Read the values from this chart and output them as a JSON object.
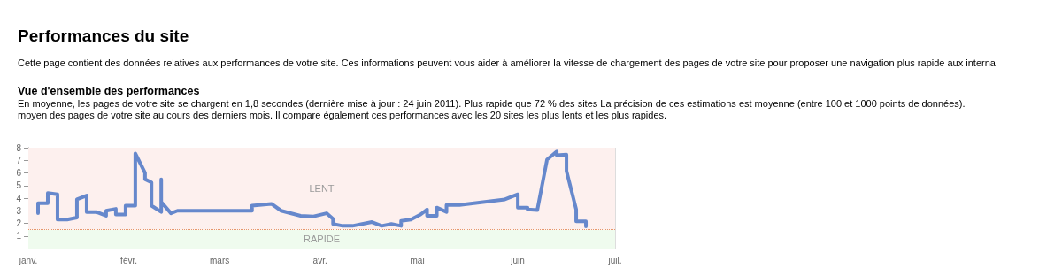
{
  "chart_data": {
    "type": "line",
    "title": "Performances du site",
    "subtitle": "Cette page contient des données relatives aux performances de votre site. Ces informations peuvent vous aider à améliorer la vitesse de chargement des pages de votre site pour proposer une navigation plus rapide aux interna",
    "annotations": [
      "Vue d'ensemble des performances",
      "En moyenne, les pages de votre site se chargent en 1,8 secondes (dernière mise à jour : 24 juin 2011). Plus rapide que 72 % des sites La précision de ces estimations est moyenne (entre 100 et 1000 points de données).",
      "moyen des pages de votre site au cours des derniers mois. Il compare également ces performances avec les 20 sites les plus lents et les plus rapides."
    ],
    "series": [
      {
        "color": "#6688cc",
        "x": [
          "2011-01-04",
          "2011-01-04",
          "2011-01-07",
          "2011-01-07",
          "2011-01-10",
          "2011-01-10",
          "2011-01-13",
          "2011-01-16",
          "2011-01-16",
          "2011-01-19",
          "2011-01-19",
          "2011-01-22",
          "2011-01-25",
          "2011-01-25",
          "2011-01-28",
          "2011-01-28",
          "2011-01-31",
          "2011-01-31",
          "2011-02-03",
          "2011-02-03",
          "2011-02-06",
          "2011-02-06",
          "2011-02-08",
          "2011-02-08",
          "2011-02-11",
          "2011-02-11",
          "2011-02-11",
          "2011-02-14",
          "2011-02-16",
          "2011-03-11",
          "2011-03-11",
          "2011-03-17",
          "2011-03-20",
          "2011-03-26",
          "2011-03-30",
          "2011-04-03",
          "2011-04-05",
          "2011-04-05",
          "2011-04-08",
          "2011-04-11",
          "2011-04-17",
          "2011-04-20",
          "2011-04-23",
          "2011-04-26",
          "2011-04-26",
          "2011-04-29",
          "2011-05-02",
          "2011-05-04",
          "2011-05-04",
          "2011-05-07",
          "2011-05-07",
          "2011-05-10",
          "2011-05-10",
          "2011-05-14",
          "2011-05-28",
          "2011-06-01",
          "2011-06-01",
          "2011-06-04",
          "2011-06-04",
          "2011-06-07",
          "2011-06-10",
          "2011-06-13",
          "2011-06-13",
          "2011-06-16",
          "2011-06-16",
          "2011-06-19",
          "2011-06-19",
          "2011-06-22",
          "2011-06-22"
        ],
        "values": [
          2.8,
          3.6,
          3.6,
          4.4,
          4.3,
          2.3,
          2.3,
          2.45,
          3.9,
          4.2,
          2.9,
          2.9,
          2.6,
          3.0,
          3.15,
          2.7,
          2.7,
          3.4,
          3.4,
          7.55,
          6.0,
          5.5,
          5.25,
          3.4,
          2.9,
          5.5,
          3.7,
          2.8,
          3.0,
          3.0,
          3.4,
          3.55,
          3.0,
          2.6,
          2.55,
          2.8,
          2.35,
          1.95,
          1.8,
          1.8,
          2.1,
          1.8,
          1.95,
          1.8,
          2.2,
          2.3,
          2.7,
          3.1,
          2.6,
          2.6,
          3.25,
          2.9,
          3.45,
          3.45,
          3.9,
          4.3,
          3.25,
          3.25,
          3.1,
          3.05,
          7.05,
          7.7,
          7.4,
          7.45,
          6.15,
          3.1,
          2.15,
          2.15,
          1.75
        ]
      }
    ],
    "xlim": [
      "2011-01-01",
      "2011-07-01"
    ],
    "xticks": [
      {
        "value": "2011-01-01",
        "label": "janv."
      },
      {
        "value": "2011-02-01",
        "label": "févr."
      },
      {
        "value": "2011-03-01",
        "label": "mars"
      },
      {
        "value": "2011-04-01",
        "label": "avr."
      },
      {
        "value": "2011-05-01",
        "label": "mai"
      },
      {
        "value": "2011-06-01",
        "label": "juin"
      },
      {
        "value": "2011-07-01",
        "label": "juil."
      }
    ],
    "ylim": [
      0,
      8
    ],
    "yticks": [
      1,
      2,
      3,
      4,
      5,
      6,
      7,
      8
    ],
    "grid": "x",
    "marker": "none",
    "line_style": "solid",
    "bands": [
      {
        "axis": "y",
        "from": 0,
        "to": 1.5,
        "label": "RAPIDE",
        "color": "#effbee"
      },
      {
        "axis": "y",
        "from": 1.5,
        "to": 8,
        "label": "LENT",
        "color": "#fdf0ee"
      }
    ],
    "ref_lines": [
      {
        "axis": "y",
        "value": 1.5,
        "color": "#e8956a",
        "line_style": "dotted"
      }
    ]
  }
}
